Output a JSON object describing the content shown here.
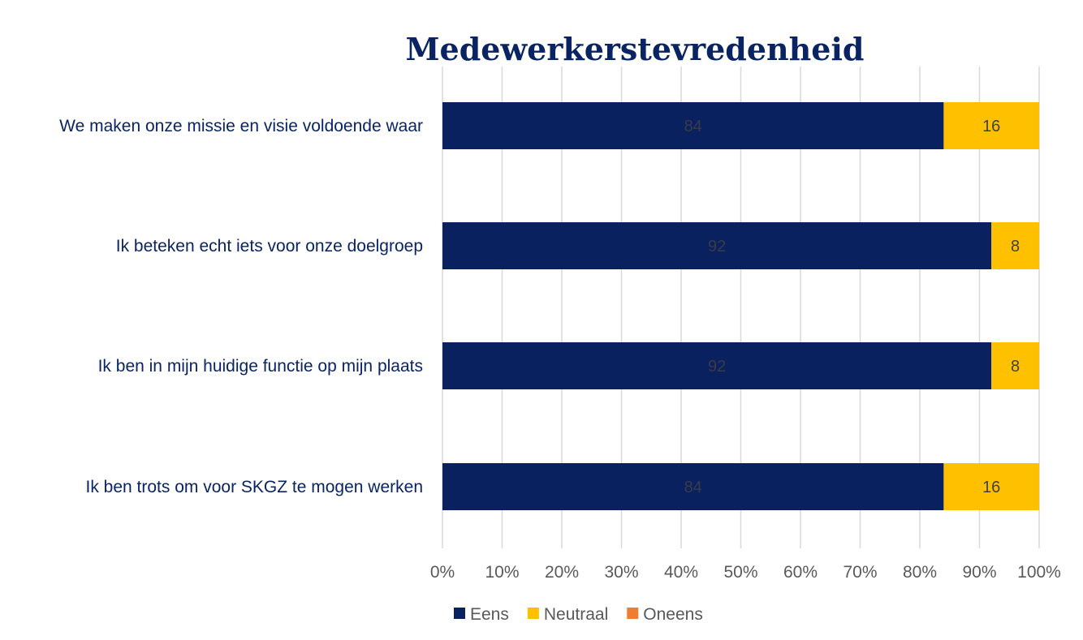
{
  "chart_data": {
    "type": "bar",
    "orientation": "horizontal",
    "stacked": "percent",
    "title": "Medewerkerstevredenheid",
    "categories": [
      "We maken onze missie en visie voldoende waar",
      "Ik beteken echt iets voor onze doelgroep",
      "Ik ben in mijn huidige functie op mijn plaats",
      "Ik ben trots om voor SKGZ te mogen werken"
    ],
    "series": [
      {
        "name": "Eens",
        "color": "#0a215f",
        "label_color": "#3a3a4a",
        "values": [
          84,
          92,
          92,
          84
        ]
      },
      {
        "name": "Neutraal",
        "color": "#ffc000",
        "label_color": "#404040",
        "values": [
          16,
          8,
          8,
          16
        ]
      },
      {
        "name": "Oneens",
        "color": "#ed7d31",
        "label_color": "#404040",
        "values": [
          0,
          0,
          0,
          0
        ]
      }
    ],
    "xlim": [
      0,
      100
    ],
    "xticks": [
      "0%",
      "10%",
      "20%",
      "30%",
      "40%",
      "50%",
      "60%",
      "70%",
      "80%",
      "90%",
      "100%"
    ],
    "grid": true,
    "legend_position": "bottom"
  }
}
